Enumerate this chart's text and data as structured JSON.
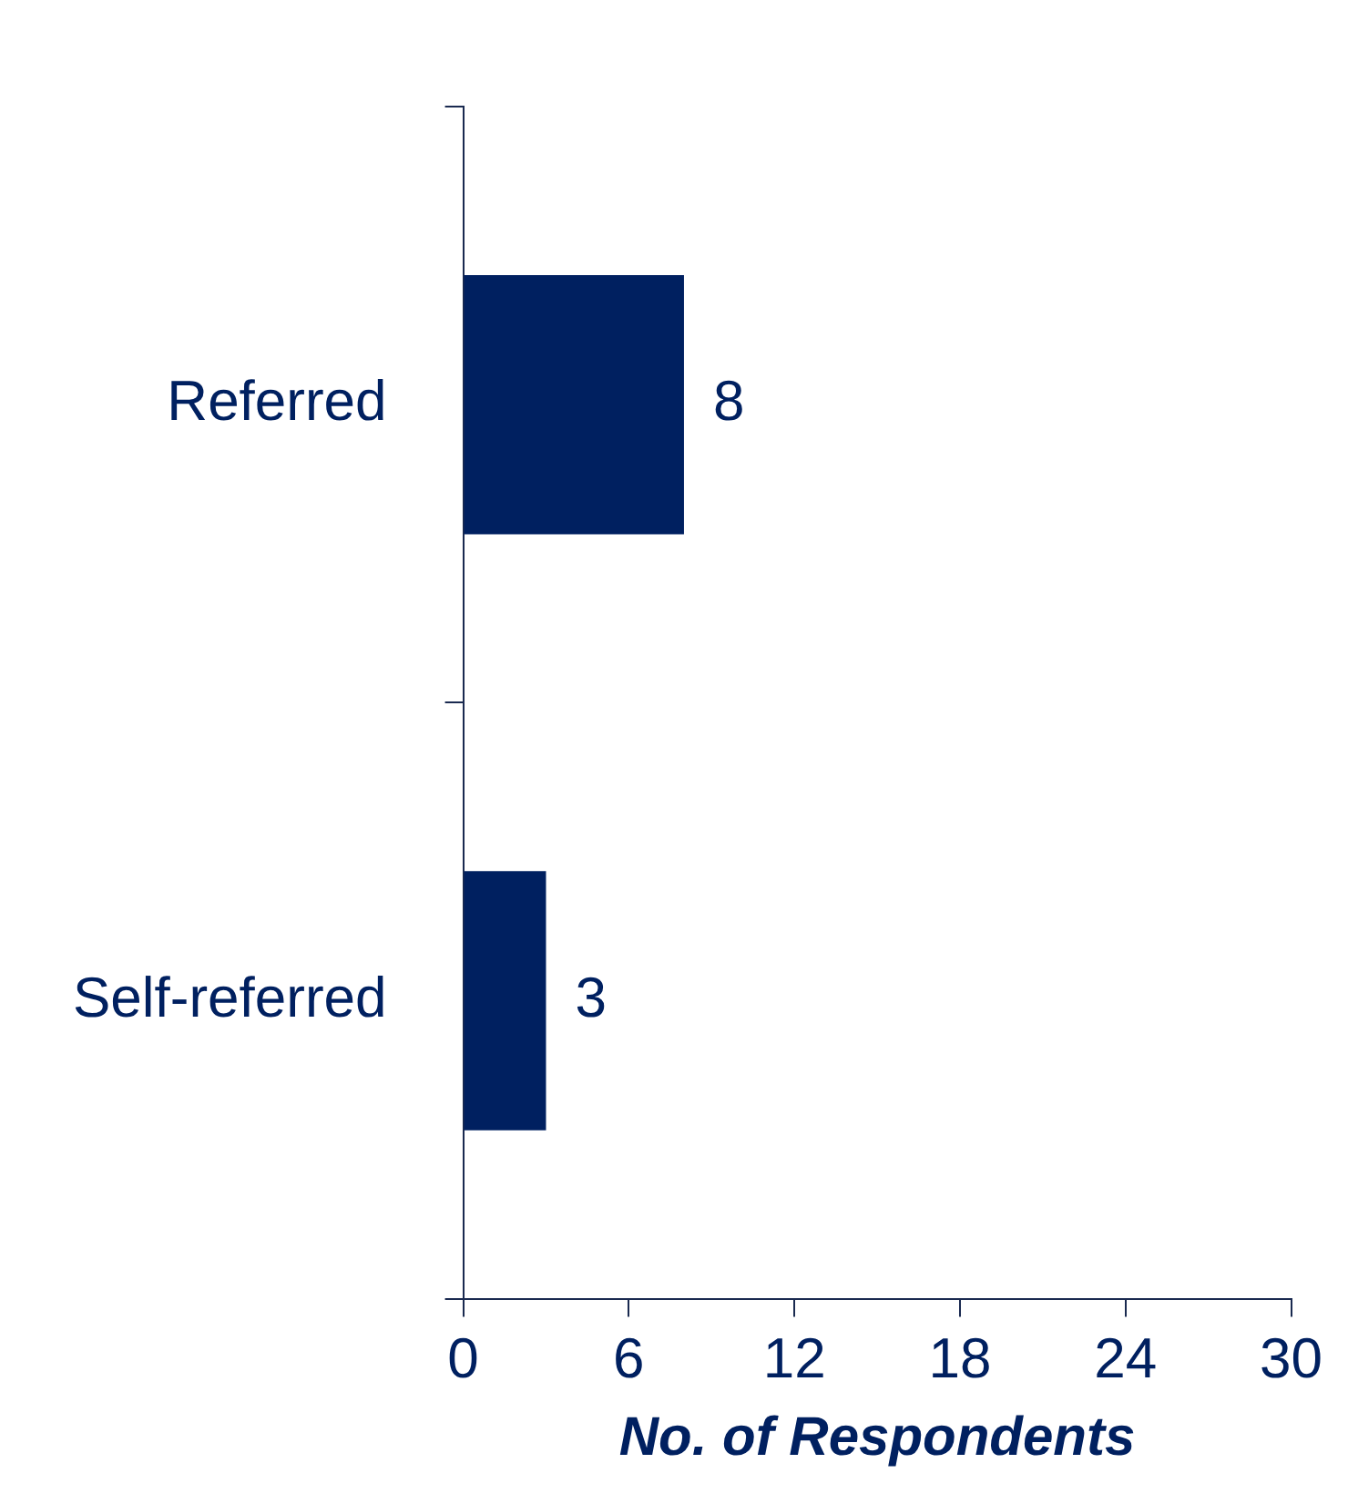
{
  "chart_data": {
    "type": "bar",
    "orientation": "horizontal",
    "categories": [
      "Referred",
      "Self-referred"
    ],
    "values": [
      8,
      3
    ],
    "color": "#002060",
    "xlim": [
      0,
      30
    ],
    "xticks": [
      0,
      6,
      12,
      18,
      24,
      30
    ],
    "xlabel": "No. of Respondents",
    "data_labels": true,
    "grid": false,
    "legend": false
  }
}
